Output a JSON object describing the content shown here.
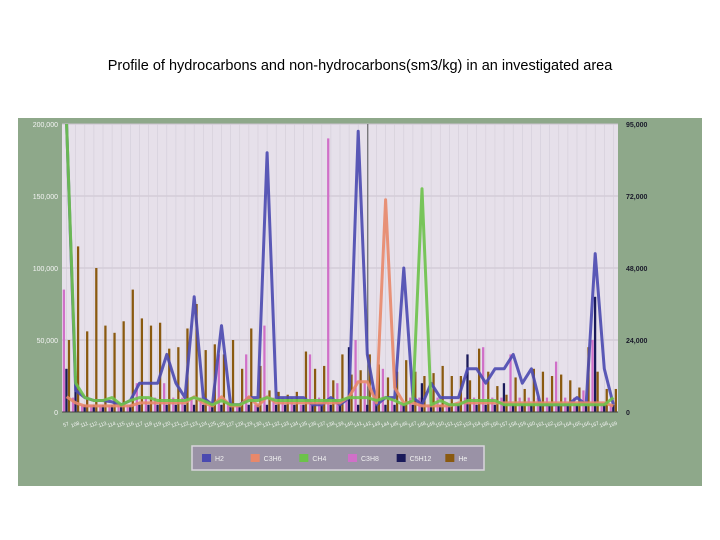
{
  "title": "Profile of hydrocarbons and non-hydrocarbons(sm3/kg) in an investigated area",
  "colors": {
    "frame": "#8ea88a",
    "plot_bg": "#e6e0ea",
    "legend_bg": "#9a92a6"
  },
  "chart_data": {
    "type": "bar",
    "title": "Profile of hydrocarbons and non-hydrocarbons(sm3/kg) in an investigated area",
    "xlabel": "",
    "ylabel": "",
    "y_left": {
      "ylim": [
        0,
        200000
      ],
      "ticks": [
        "0",
        "50,000",
        "100,000",
        "150,000",
        "200,000"
      ]
    },
    "y_right": {
      "ylim": [
        0,
        95000
      ],
      "ticks": [
        "0",
        "24,000",
        "48,000",
        "72,000",
        "95,000"
      ]
    },
    "categories": [
      "57",
      "108",
      "111",
      "112",
      "113",
      "114",
      "115",
      "116",
      "117",
      "118",
      "119",
      "120",
      "121",
      "122",
      "123",
      "124",
      "125",
      "126",
      "127",
      "128",
      "129",
      "130",
      "131",
      "132",
      "133",
      "134",
      "135",
      "136",
      "137",
      "138",
      "139",
      "140",
      "141",
      "142",
      "143",
      "144",
      "145",
      "146",
      "147",
      "148",
      "149",
      "150",
      "151",
      "152",
      "153",
      "154",
      "155",
      "156",
      "157",
      "158",
      "159",
      "160",
      "161",
      "162",
      "163",
      "164",
      "165",
      "166",
      "167",
      "168",
      "169"
    ],
    "tick_labels": [
      "57",
      "108",
      "111",
      "112",
      "113",
      "114",
      "115",
      "116",
      "117",
      "118",
      "119",
      "120",
      "121",
      "122",
      "123",
      "124",
      "125",
      "126",
      "127",
      "128",
      "129",
      "130",
      "131",
      "132",
      "133",
      "134",
      "135",
      "136",
      "137",
      "138",
      "139",
      "140",
      "141",
      "142",
      "143",
      "144",
      "145",
      "146",
      "147",
      "148",
      "149",
      "150",
      "151",
      "152",
      "153",
      "154",
      "155",
      "156",
      "157",
      "158",
      "159",
      "160",
      "161",
      "162",
      "163",
      "164",
      "165",
      "166",
      "167",
      "168",
      "169"
    ],
    "legend_position": "bottom",
    "grid": true,
    "series": [
      {
        "name": "H2",
        "type": "line",
        "axis": "left",
        "color": "#4a49b0",
        "values": [
          200000,
          15000,
          10000,
          8000,
          8000,
          7000,
          5000,
          8000,
          20000,
          20000,
          20000,
          40000,
          20000,
          10000,
          80000,
          10000,
          5000,
          60000,
          5000,
          5000,
          10000,
          10000,
          180000,
          10000,
          10000,
          10000,
          10000,
          5000,
          5000,
          10000,
          5000,
          10000,
          195000,
          40000,
          5000,
          10000,
          10000,
          100000,
          10000,
          5000,
          20000,
          10000,
          10000,
          10000,
          30000,
          30000,
          20000,
          30000,
          30000,
          40000,
          20000,
          30000,
          5000,
          5000,
          5000,
          5000,
          10000,
          5000,
          110000,
          30000,
          5000
        ]
      },
      {
        "name": "C3H6",
        "type": "line",
        "axis": "right",
        "color": "#e8886a",
        "values": [
          5000,
          3000,
          2000,
          2000,
          2000,
          2000,
          2000,
          2000,
          3000,
          3000,
          3000,
          3000,
          3000,
          3000,
          5000,
          3000,
          2000,
          5000,
          2000,
          2000,
          5000,
          2000,
          5000,
          3000,
          3000,
          3000,
          3000,
          3000,
          3000,
          3000,
          3000,
          5000,
          10000,
          10000,
          3000,
          70000,
          8000,
          3000,
          3000,
          2000,
          2000,
          2000,
          2000,
          3000,
          3000,
          3000,
          3000,
          3000,
          3000,
          3000,
          3000,
          3000,
          3000,
          3000,
          3000,
          3000,
          3000,
          3000,
          3000,
          3000,
          2000
        ]
      },
      {
        "name": "CH4",
        "type": "line",
        "axis": "left",
        "color": "#6cc24a",
        "values": [
          210000,
          20000,
          10000,
          8000,
          8000,
          10000,
          5000,
          8000,
          10000,
          10000,
          8000,
          8000,
          8000,
          8000,
          10000,
          8000,
          5000,
          8000,
          5000,
          5000,
          8000,
          8000,
          10000,
          8000,
          8000,
          8000,
          8000,
          8000,
          8000,
          8000,
          8000,
          10000,
          10000,
          10000,
          8000,
          10000,
          8000,
          5000,
          8000,
          155000,
          5000,
          8000,
          5000,
          5000,
          8000,
          8000,
          8000,
          8000,
          5000,
          5000,
          5000,
          5000,
          5000,
          5000,
          5000,
          5000,
          5000,
          5000,
          5000,
          5000,
          10000
        ]
      },
      {
        "name": "C3H8",
        "type": "bar",
        "axis": "left",
        "color": "#d070c8",
        "values": [
          85000,
          10000,
          5000,
          5000,
          5000,
          5000,
          5000,
          5000,
          20000,
          10000,
          10000,
          20000,
          10000,
          10000,
          10000,
          10000,
          5000,
          40000,
          5000,
          5000,
          40000,
          5000,
          60000,
          10000,
          10000,
          10000,
          5000,
          40000,
          10000,
          190000,
          20000,
          10000,
          50000,
          20000,
          10000,
          30000,
          10000,
          5000,
          10000,
          10000,
          5000,
          10000,
          5000,
          5000,
          10000,
          10000,
          45000,
          10000,
          10000,
          40000,
          10000,
          10000,
          10000,
          10000,
          35000,
          10000,
          10000,
          15000,
          50000,
          5000,
          5000
        ]
      },
      {
        "name": "C5H12",
        "type": "bar",
        "axis": "left",
        "color": "#1a1a5a",
        "values": [
          30000,
          25000,
          5000,
          5000,
          5000,
          5000,
          5000,
          5000,
          5000,
          5000,
          5000,
          5000,
          5000,
          5000,
          5000,
          5000,
          5000,
          5000,
          5000,
          5000,
          5000,
          5000,
          5000,
          5000,
          5000,
          5000,
          5000,
          5000,
          5000,
          5000,
          5000,
          45000,
          5000,
          5000,
          5000,
          5000,
          5000,
          5000,
          5000,
          20000,
          5000,
          5000,
          5000,
          5000,
          40000,
          5000,
          5000,
          5000,
          20000,
          5000,
          5000,
          5000,
          5000,
          5000,
          5000,
          5000,
          5000,
          5000,
          80000,
          5000,
          5000
        ]
      },
      {
        "name": "He",
        "type": "bar",
        "axis": "left",
        "color": "#8a5a10",
        "values": [
          50000,
          115000,
          56000,
          100000,
          60000,
          55000,
          63000,
          85000,
          65000,
          60000,
          62000,
          44000,
          45000,
          58000,
          75000,
          43000,
          47000,
          40000,
          50000,
          30000,
          58000,
          32000,
          15000,
          14000,
          12000,
          14000,
          42000,
          30000,
          32000,
          22000,
          40000,
          26000,
          29000,
          40000,
          33000,
          24000,
          28000,
          36000,
          28000,
          25000,
          27000,
          32000,
          25000,
          25000,
          22000,
          44000,
          28000,
          18000,
          12000,
          24000,
          16000,
          30000,
          28000,
          25000,
          26000,
          22000,
          17000,
          45000,
          28000,
          16000,
          16000
        ]
      }
    ]
  }
}
